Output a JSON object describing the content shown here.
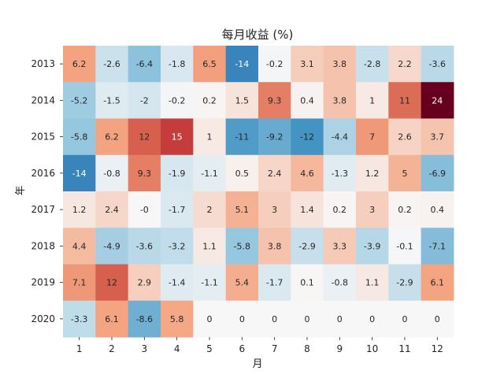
{
  "chart_data": {
    "type": "heatmap",
    "title": "每月收益 (%)",
    "xlabel": "月",
    "ylabel": "年",
    "x": [
      "1",
      "2",
      "3",
      "4",
      "5",
      "6",
      "7",
      "8",
      "9",
      "10",
      "11",
      "12"
    ],
    "y": [
      "2013",
      "2014",
      "2015",
      "2016",
      "2017",
      "2018",
      "2019",
      "2020"
    ],
    "values": [
      [
        6.2,
        -2.6,
        -6.4,
        -1.8,
        6.5,
        -14,
        -0.2,
        3.1,
        3.8,
        -2.8,
        2.2,
        -3.6
      ],
      [
        -5.2,
        -1.5,
        -2,
        -0.2,
        0.2,
        1.5,
        9.3,
        0.4,
        3.8,
        1,
        11,
        24
      ],
      [
        -5.8,
        6.2,
        12,
        15,
        1,
        -11,
        -9.2,
        -12,
        -4.4,
        7,
        2.6,
        3.7
      ],
      [
        -14,
        -0.8,
        9.3,
        -1.9,
        -1.1,
        0.5,
        2.4,
        4.6,
        -1.3,
        1.2,
        5,
        -6.9
      ],
      [
        1.2,
        2.4,
        0,
        -1.7,
        2,
        5.1,
        3,
        1.4,
        0.2,
        3,
        0.2,
        0.4
      ],
      [
        4.4,
        -4.9,
        -3.6,
        -3.2,
        1.1,
        -5.8,
        3.8,
        -2.9,
        3.3,
        -3.9,
        -0.1,
        -7.1
      ],
      [
        7.1,
        12,
        2.9,
        -1.4,
        -1.1,
        5.4,
        -1.7,
        0.1,
        -0.8,
        1.1,
        -2.9,
        6.1
      ],
      [
        -3.3,
        6.1,
        -8.6,
        5.8,
        0,
        0,
        0,
        0,
        0,
        0,
        0,
        0
      ]
    ],
    "labels": [
      [
        "6.2",
        "-2.6",
        "-6.4",
        "-1.8",
        "6.5",
        "-14",
        "-0.2",
        "3.1",
        "3.8",
        "-2.8",
        "2.2",
        "-3.6"
      ],
      [
        "-5.2",
        "-1.5",
        "-2",
        "-0.2",
        "0.2",
        "1.5",
        "9.3",
        "0.4",
        "3.8",
        "1",
        "11",
        "24"
      ],
      [
        "-5.8",
        "6.2",
        "12",
        "15",
        "1",
        "-11",
        "-9.2",
        "-12",
        "-4.4",
        "7",
        "2.6",
        "3.7"
      ],
      [
        "-14",
        "-0.8",
        "9.3",
        "-1.9",
        "-1.1",
        "0.5",
        "2.4",
        "4.6",
        "-1.3",
        "1.2",
        "5",
        "-6.9"
      ],
      [
        "1.2",
        "2.4",
        "-0",
        "-1.7",
        "2",
        "5.1",
        "3",
        "1.4",
        "0.2",
        "3",
        "0.2",
        "0.4"
      ],
      [
        "4.4",
        "-4.9",
        "-3.6",
        "-3.2",
        "1.1",
        "-5.8",
        "3.8",
        "-2.9",
        "3.3",
        "-3.9",
        "-0.1",
        "-7.1"
      ],
      [
        "7.1",
        "12",
        "2.9",
        "-1.4",
        "-1.1",
        "5.4",
        "-1.7",
        "0.1",
        "-0.8",
        "1.1",
        "-2.9",
        "6.1"
      ],
      [
        "-3.3",
        "6.1",
        "-8.6",
        "5.8",
        "0",
        "0",
        "0",
        "0",
        "0",
        "0",
        "0",
        "0"
      ]
    ],
    "colormap": "RdBu_r",
    "vmin": -24,
    "vmax": 24,
    "grid": false
  }
}
